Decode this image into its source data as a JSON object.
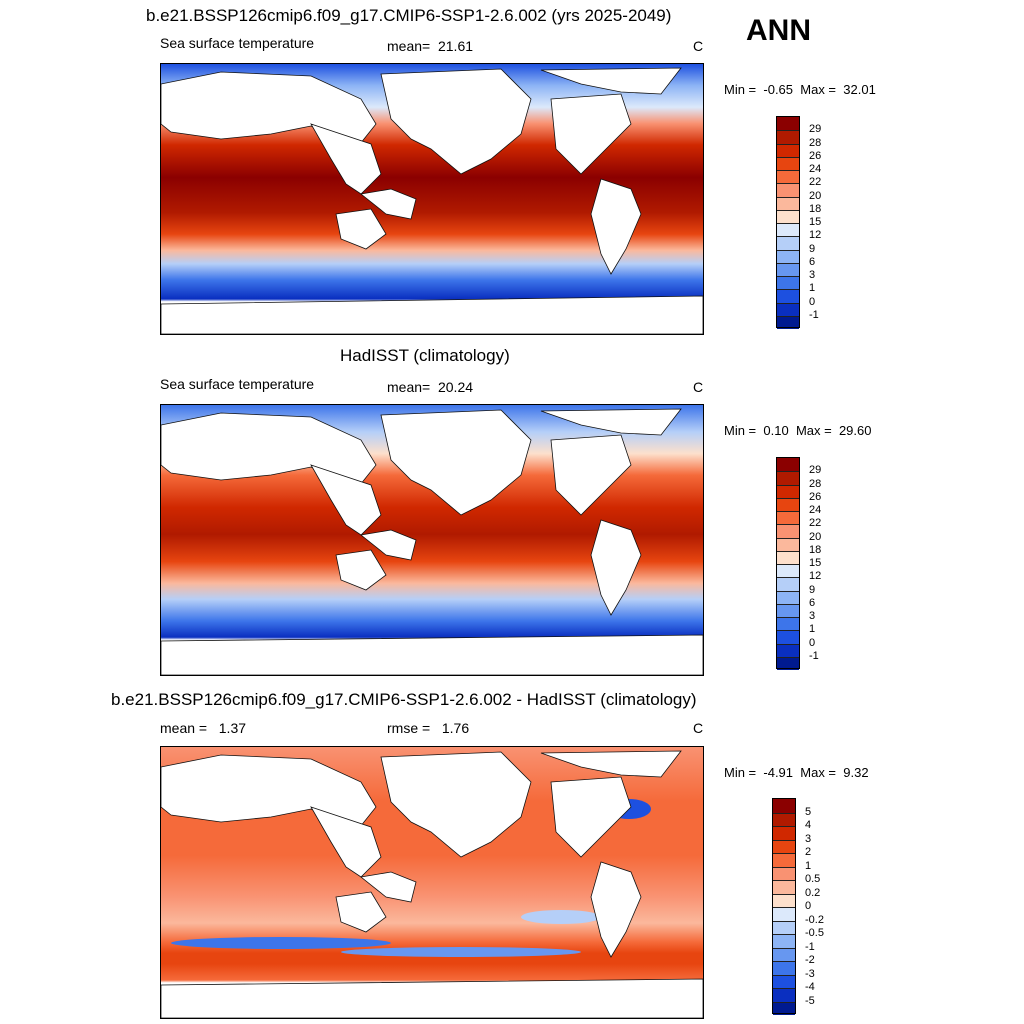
{
  "season": "ANN",
  "panels": [
    {
      "title": "b.e21.BSSP126cmip6.f09_g17.CMIP6-SSP1-2.6.002 (yrs 2025-2049)",
      "left_label": "Sea surface temperature",
      "stat_label": "mean=",
      "stat_value": "21.61",
      "units": "C",
      "min_label": "Min =",
      "min_value": "-0.65",
      "max_label": "Max =",
      "max_value": "32.01",
      "colorbar": {
        "labels": [
          "29",
          "28",
          "26",
          "24",
          "22",
          "20",
          "18",
          "15",
          "12",
          "9",
          "6",
          "3",
          "1",
          "0",
          "-1"
        ],
        "colors": [
          "#8b0000",
          "#b01a00",
          "#d02800",
          "#e74510",
          "#f56a3a",
          "#f99272",
          "#fbb89c",
          "#fde0cc",
          "#dce9fb",
          "#b5cff8",
          "#8db4f5",
          "#6797f0",
          "#3d75ea",
          "#1d50e0",
          "#0a2fc0",
          "#001a90"
        ]
      }
    },
    {
      "title": "HadISST (climatology)",
      "left_label": "Sea surface temperature",
      "stat_label": "mean=",
      "stat_value": "20.24",
      "units": "C",
      "min_label": "Min =",
      "min_value": "0.10",
      "max_label": "Max =",
      "max_value": "29.60",
      "colorbar": {
        "labels": [
          "29",
          "28",
          "26",
          "24",
          "22",
          "20",
          "18",
          "15",
          "12",
          "9",
          "6",
          "3",
          "1",
          "0",
          "-1"
        ],
        "colors": [
          "#8b0000",
          "#b01a00",
          "#d02800",
          "#e74510",
          "#f56a3a",
          "#f99272",
          "#fbb89c",
          "#fde0cc",
          "#dce9fb",
          "#b5cff8",
          "#8db4f5",
          "#6797f0",
          "#3d75ea",
          "#1d50e0",
          "#0a2fc0",
          "#001a90"
        ]
      }
    },
    {
      "title": "b.e21.BSSP126cmip6.f09_g17.CMIP6-SSP1-2.6.002 - HadISST (climatology)",
      "left_label": "mean =",
      "left_value": "1.37",
      "stat_label": "rmse =",
      "stat_value": "1.76",
      "units": "C",
      "min_label": "Min =",
      "min_value": "-4.91",
      "max_label": "Max =",
      "max_value": "9.32",
      "colorbar": {
        "labels": [
          "5",
          "4",
          "3",
          "2",
          "1",
          "0.5",
          "0.2",
          "0",
          "-0.2",
          "-0.5",
          "-1",
          "-2",
          "-3",
          "-4",
          "-5"
        ],
        "colors": [
          "#8b0000",
          "#b01a00",
          "#d02800",
          "#e74510",
          "#f56a3a",
          "#f99272",
          "#fbb89c",
          "#fde0cc",
          "#dce9fb",
          "#b5cff8",
          "#8db4f5",
          "#6797f0",
          "#3d75ea",
          "#1d50e0",
          "#0a2fc0",
          "#001a90"
        ]
      }
    }
  ]
}
